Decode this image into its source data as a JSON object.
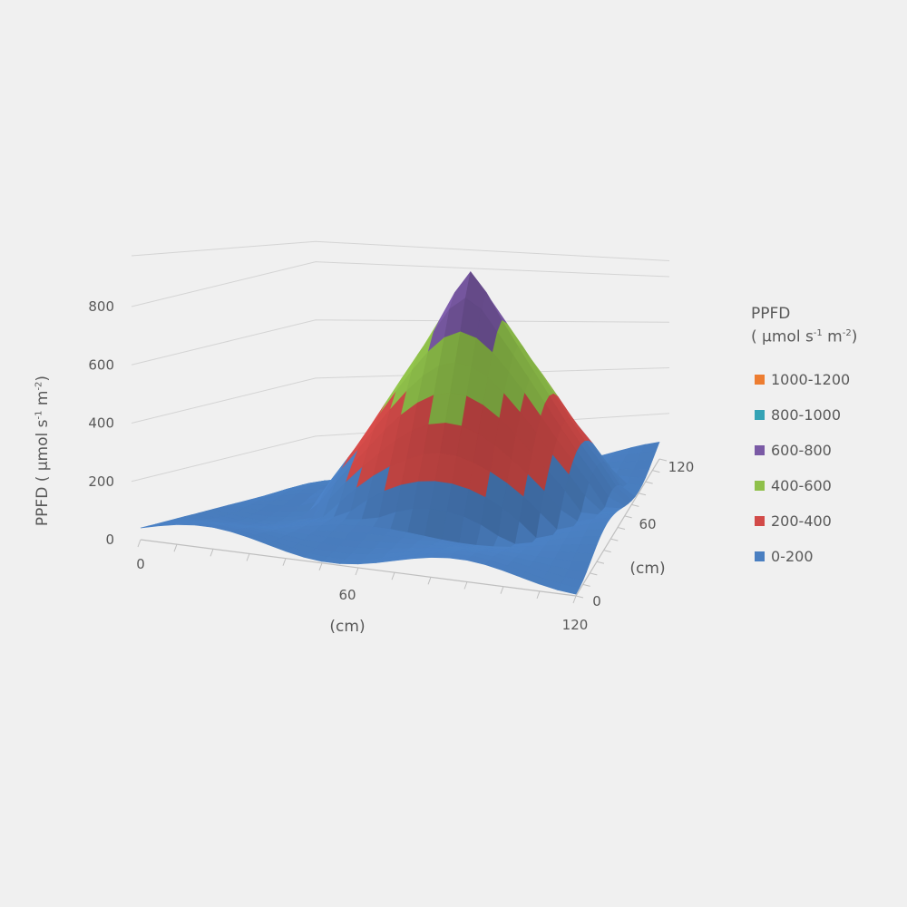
{
  "chart_data": {
    "type": "surface",
    "zlabel_main": "PPFD ( μmol s",
    "zlabel_sup1": "-1",
    "zlabel_mid": " m",
    "zlabel_sup2": "-2",
    "zlabel_end": ")",
    "xlabel": "(cm)",
    "ylabel": "(cm)",
    "x_ticks": [
      "0",
      "60",
      "120"
    ],
    "y_ticks": [
      "0",
      "60",
      "120"
    ],
    "z_ticks": [
      "0",
      "200",
      "400",
      "600",
      "800"
    ],
    "xlim": [
      0,
      120
    ],
    "ylim": [
      0,
      120
    ],
    "zlim": [
      0,
      800
    ],
    "grid": true,
    "legend_position": "right",
    "legend": {
      "title_line1": "PPFD",
      "title_line2_main": "( μmol s",
      "title_line2_sup1": "-1",
      "title_line2_mid": " m",
      "title_line2_sup2": "-2",
      "title_line2_end": ")",
      "items": [
        {
          "label": "1000-1200",
          "color": "#ed7d31"
        },
        {
          "label": "800-1000",
          "color": "#35a3b5"
        },
        {
          "label": "600-800",
          "color": "#7a5aa5"
        },
        {
          "label": "400-600",
          "color": "#8fc04a"
        },
        {
          "label": "200-400",
          "color": "#d24a48"
        },
        {
          "label": "0-200",
          "color": "#4a7fc1"
        }
      ]
    },
    "surface": {
      "x": [
        0,
        10,
        20,
        30,
        40,
        50,
        60,
        70,
        80,
        90,
        100,
        110,
        120
      ],
      "y": [
        0,
        10,
        20,
        30,
        40,
        50,
        60,
        70,
        80,
        90,
        100,
        110,
        120
      ],
      "peak": 820,
      "peak_x": 70,
      "peak_y": 75,
      "description_free": true
    }
  }
}
